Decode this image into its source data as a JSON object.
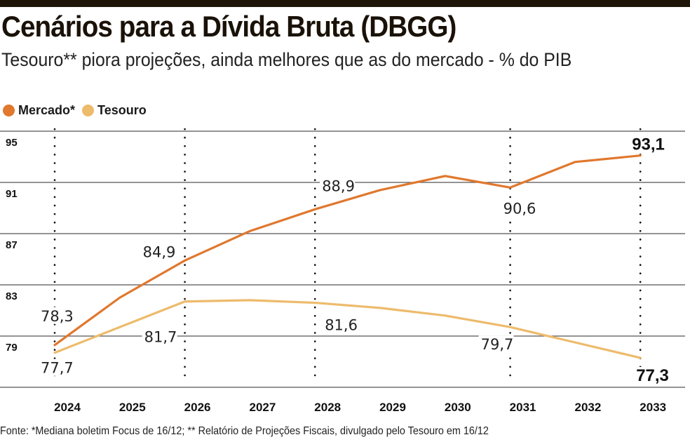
{
  "header": {
    "title": "Cenários para a Dívida Bruta (DBGG)",
    "subtitle": "Tesouro** piora projeções, ainda melhores que as do mercado - % do PIB"
  },
  "legend": [
    {
      "label": "Mercado*",
      "color": "#E0782E"
    },
    {
      "label": "Tesouro",
      "color": "#EDBB6C"
    }
  ],
  "footer": {
    "source": "Fonte: *Mediana boletim Focus de 16/12; ** Relatório de Projeções Fiscais, divulgado pelo Tesouro em 16/12"
  },
  "chart_data": {
    "type": "line",
    "title": "Cenários para a Dívida Bruta (DBGG)",
    "subtitle": "Tesouro** piora projeções, ainda melhores que as do mercado - % do PIB",
    "xlabel": "",
    "ylabel": "% do PIB",
    "categories": [
      "2024",
      "2025",
      "2026",
      "2027",
      "2028",
      "2029",
      "2030",
      "2031",
      "2032",
      "2033"
    ],
    "yticks": [
      95,
      91,
      87,
      83,
      79
    ],
    "ylim": [
      75,
      95
    ],
    "grid": true,
    "legend_position": "top-left",
    "highlighted_years": [
      "2024",
      "2026",
      "2028",
      "2031",
      "2033"
    ],
    "series": [
      {
        "name": "Mercado*",
        "color": "#E0782E",
        "values": [
          78.3,
          82.0,
          84.9,
          87.2,
          88.9,
          90.4,
          91.5,
          90.6,
          92.6,
          93.1
        ],
        "labels": [
          {
            "index": 0,
            "text": "78,3",
            "bold": false
          },
          {
            "index": 2,
            "text": "84,9",
            "bold": false
          },
          {
            "index": 4,
            "text": "88,9",
            "bold": false
          },
          {
            "index": 7,
            "text": "90,6",
            "bold": false
          },
          {
            "index": 9,
            "text": "93,1",
            "bold": true
          }
        ]
      },
      {
        "name": "Tesouro",
        "color": "#EDBB6C",
        "values": [
          77.7,
          79.7,
          81.7,
          81.8,
          81.6,
          81.2,
          80.6,
          79.7,
          78.5,
          77.3
        ],
        "labels": [
          {
            "index": 0,
            "text": "77,7",
            "bold": false
          },
          {
            "index": 2,
            "text": "81,7",
            "bold": false
          },
          {
            "index": 4,
            "text": "81,6",
            "bold": false
          },
          {
            "index": 7,
            "text": "79,7",
            "bold": false
          },
          {
            "index": 9,
            "text": "77,3",
            "bold": true
          }
        ]
      }
    ]
  }
}
